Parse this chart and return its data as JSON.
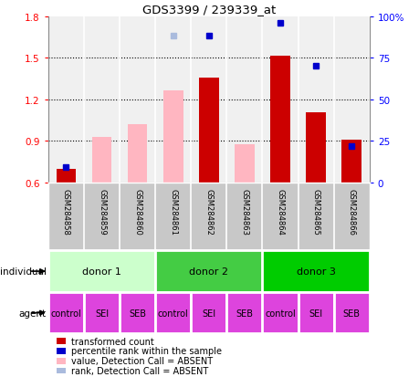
{
  "title": "GDS3399 / 239339_at",
  "samples": [
    "GSM284858",
    "GSM284859",
    "GSM284860",
    "GSM284861",
    "GSM284862",
    "GSM284863",
    "GSM284864",
    "GSM284865",
    "GSM284866"
  ],
  "ylim_left": [
    0.6,
    1.8
  ],
  "ylim_right": [
    0,
    100
  ],
  "yticks_left": [
    0.6,
    0.9,
    1.2,
    1.5,
    1.8
  ],
  "yticks_right": [
    0,
    25,
    50,
    75,
    100
  ],
  "ytick_labels_right": [
    "0",
    "25",
    "50",
    "75",
    "100%"
  ],
  "bar_values": {
    "GSM284858": 0.695,
    "GSM284862": 1.355,
    "GSM284864": 1.515,
    "GSM284865": 1.105,
    "GSM284866": 0.905
  },
  "absent_bar_values": {
    "GSM284859": 0.93,
    "GSM284860": 1.02,
    "GSM284861": 1.265,
    "GSM284863": 0.875
  },
  "percentile_values": {
    "GSM284858": 9,
    "GSM284862": 88,
    "GSM284864": 96,
    "GSM284865": 70,
    "GSM284866": 22
  },
  "absent_rank_values": {
    "GSM284861": 88
  },
  "bar_bottom": 0.6,
  "bar_color": "#CC0000",
  "absent_bar_color": "#FFB6C1",
  "dot_color": "#0000CC",
  "absent_dot_color": "#AABBDD",
  "donor1_color": "#CCFFCC",
  "donor2_color": "#44CC44",
  "donor3_color": "#00CC00",
  "agent_color": "#DD44DD",
  "individual_groups": [
    {
      "label": "donor 1",
      "start": 0,
      "end": 3,
      "color": "#CCFFCC"
    },
    {
      "label": "donor 2",
      "start": 3,
      "end": 6,
      "color": "#44CC44"
    },
    {
      "label": "donor 3",
      "start": 6,
      "end": 9,
      "color": "#00CC00"
    }
  ],
  "agent_labels": [
    "control",
    "SEI",
    "SEB",
    "control",
    "SEI",
    "SEB",
    "control",
    "SEI",
    "SEB"
  ],
  "individual_label": "individual",
  "agent_label": "agent",
  "legend_items": [
    {
      "label": "transformed count",
      "color": "#CC0000"
    },
    {
      "label": "percentile rank within the sample",
      "color": "#0000CC"
    },
    {
      "label": "value, Detection Call = ABSENT",
      "color": "#FFB6C1"
    },
    {
      "label": "rank, Detection Call = ABSENT",
      "color": "#AABBDD"
    }
  ],
  "plot_bg": "#F0F0F0",
  "sample_bg": "#C8C8C8"
}
